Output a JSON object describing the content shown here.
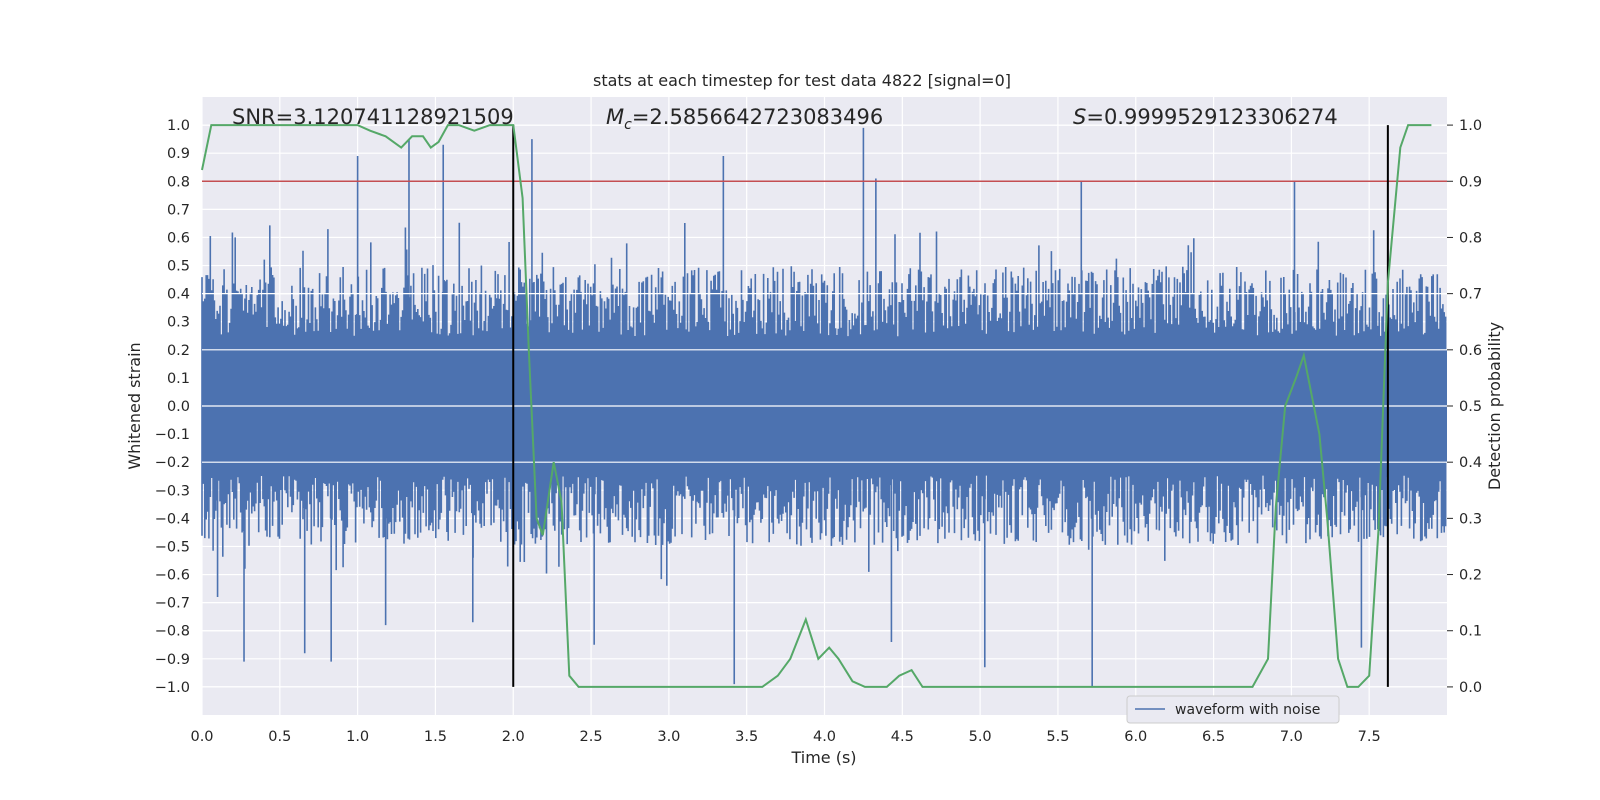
{
  "chart_data": {
    "type": "line",
    "title": "stats at each timestep for test data 4822 [signal=0]",
    "xlabel": "Time (s)",
    "ylabel": "Whitened strain",
    "y2label": "Detection probability",
    "xlim": [
      0,
      8
    ],
    "ylim": [
      -1.1,
      1.1
    ],
    "y2lim": [
      -0.05,
      1.05
    ],
    "xticks": [
      0.0,
      0.5,
      1.0,
      1.5,
      2.0,
      2.5,
      3.0,
      3.5,
      4.0,
      4.5,
      5.0,
      5.5,
      6.0,
      6.5,
      7.0,
      7.5
    ],
    "xtick_labels": [
      "0.0",
      "0.5",
      "1.0",
      "1.5",
      "2.0",
      "2.5",
      "3.0",
      "3.5",
      "4.0",
      "4.5",
      "5.0",
      "5.5",
      "6.0",
      "6.5",
      "7.0",
      "7.5"
    ],
    "yticks": [
      1.0,
      0.9,
      0.8,
      0.7,
      0.6,
      0.5,
      0.4,
      0.3,
      0.2,
      0.1,
      0.0,
      -0.1,
      -0.2,
      -0.3,
      -0.4,
      -0.5,
      -0.6,
      -0.7,
      -0.8,
      -0.9,
      -1.0
    ],
    "ytick_labels": [
      "1.0",
      "0.9",
      "0.8",
      "0.7",
      "0.6",
      "0.5",
      "0.4",
      "0.3",
      "0.2",
      "0.1",
      "0.0",
      "−0.1",
      "−0.2",
      "−0.3",
      "−0.4",
      "−0.5",
      "−0.6",
      "−0.7",
      "−0.8",
      "−0.9",
      "−1.0"
    ],
    "y2ticks": [
      1.0,
      0.9,
      0.8,
      0.7,
      0.6,
      0.5,
      0.4,
      0.3,
      0.2,
      0.1,
      0.0
    ],
    "y2tick_labels": [
      "1.0",
      "0.9",
      "0.8",
      "0.7",
      "0.6",
      "0.5",
      "0.4",
      "0.3",
      "0.2",
      "0.1",
      "0.0"
    ],
    "annotations": {
      "snr": "SNR=3.120741128921509",
      "mc_symbol": "M",
      "mc_sub": "c",
      "mc_value": "=2.5856642723083496",
      "s_symbol": "S",
      "s_value": "=0.9999529123306274"
    },
    "threshold": {
      "value": 0.9,
      "axis": "right",
      "color": "#c44e52"
    },
    "vlines": [
      {
        "x": 2.0,
        "ymin": -1.0,
        "ymax": 1.0,
        "color": "#000000"
      },
      {
        "x": 7.62,
        "ymin": -1.0,
        "ymax": 1.0,
        "color": "#000000"
      }
    ],
    "legend": {
      "position": "lower-right",
      "entries": [
        {
          "label": "waveform with noise",
          "color": "#4c72b0"
        }
      ]
    },
    "series": [
      {
        "name": "waveform with noise",
        "axis": "left",
        "color": "#4c72b0",
        "envelope": {
          "typical_upper": 0.45,
          "typical_lower": -0.45,
          "duration_s": 8.0
        },
        "spikes": [
          {
            "x": 0.27,
            "y": -0.91
          },
          {
            "x": 0.66,
            "y": -0.88
          },
          {
            "x": 0.83,
            "y": -0.91
          },
          {
            "x": 1.33,
            "y": 0.95
          },
          {
            "x": 1.55,
            "y": 0.93
          },
          {
            "x": 1.0,
            "y": 0.89
          },
          {
            "x": 2.12,
            "y": 0.95
          },
          {
            "x": 3.42,
            "y": -0.99
          },
          {
            "x": 3.35,
            "y": 0.89
          },
          {
            "x": 4.25,
            "y": 0.99
          },
          {
            "x": 4.33,
            "y": 0.81
          },
          {
            "x": 5.03,
            "y": -0.93
          },
          {
            "x": 5.72,
            "y": -1.0
          },
          {
            "x": 5.65,
            "y": 0.8
          },
          {
            "x": 7.02,
            "y": 0.8
          },
          {
            "x": 2.52,
            "y": -0.85
          },
          {
            "x": 4.43,
            "y": -0.84
          },
          {
            "x": 7.45,
            "y": -0.86
          },
          {
            "x": 1.18,
            "y": -0.78
          },
          {
            "x": 1.74,
            "y": -0.77
          },
          {
            "x": 0.1,
            "y": -0.68
          }
        ]
      },
      {
        "name": "detection probability",
        "axis": "right",
        "color": "#55a868",
        "x": [
          0.0,
          0.06,
          0.2,
          0.5,
          0.8,
          1.0,
          1.08,
          1.18,
          1.28,
          1.35,
          1.42,
          1.47,
          1.52,
          1.58,
          1.65,
          1.75,
          1.85,
          1.95,
          2.0,
          2.06,
          2.1,
          2.15,
          2.19,
          2.26,
          2.31,
          2.36,
          2.42,
          2.5,
          2.7,
          3.0,
          3.2,
          3.3,
          3.42,
          3.6,
          3.7,
          3.78,
          3.88,
          3.96,
          4.03,
          4.09,
          4.18,
          4.26,
          4.33,
          4.4,
          4.48,
          4.56,
          4.63,
          4.71,
          4.8,
          5.0,
          5.3,
          5.6,
          5.75,
          6.0,
          6.3,
          6.6,
          6.75,
          6.85,
          6.9,
          6.96,
          7.03,
          7.08,
          7.13,
          7.18,
          7.23,
          7.3,
          7.36,
          7.43,
          7.5,
          7.56,
          7.62,
          7.7,
          7.75,
          7.9
        ],
        "y": [
          0.92,
          1.0,
          1.0,
          1.0,
          1.0,
          1.0,
          0.99,
          0.98,
          0.96,
          0.98,
          0.98,
          0.96,
          0.97,
          1.0,
          1.0,
          0.99,
          1.0,
          1.0,
          1.0,
          0.87,
          0.6,
          0.3,
          0.27,
          0.4,
          0.33,
          0.02,
          0.0,
          0.0,
          0.0,
          0.0,
          0.0,
          0.0,
          0.0,
          0.0,
          0.02,
          0.05,
          0.12,
          0.05,
          0.07,
          0.05,
          0.01,
          0.0,
          0.0,
          0.0,
          0.02,
          0.03,
          0.0,
          0.0,
          0.0,
          0.0,
          0.0,
          0.0,
          0.0,
          0.0,
          0.0,
          0.0,
          0.0,
          0.05,
          0.32,
          0.5,
          0.55,
          0.59,
          0.52,
          0.45,
          0.3,
          0.05,
          0.0,
          0.0,
          0.02,
          0.28,
          0.72,
          0.96,
          1.0,
          1.0
        ]
      }
    ]
  }
}
